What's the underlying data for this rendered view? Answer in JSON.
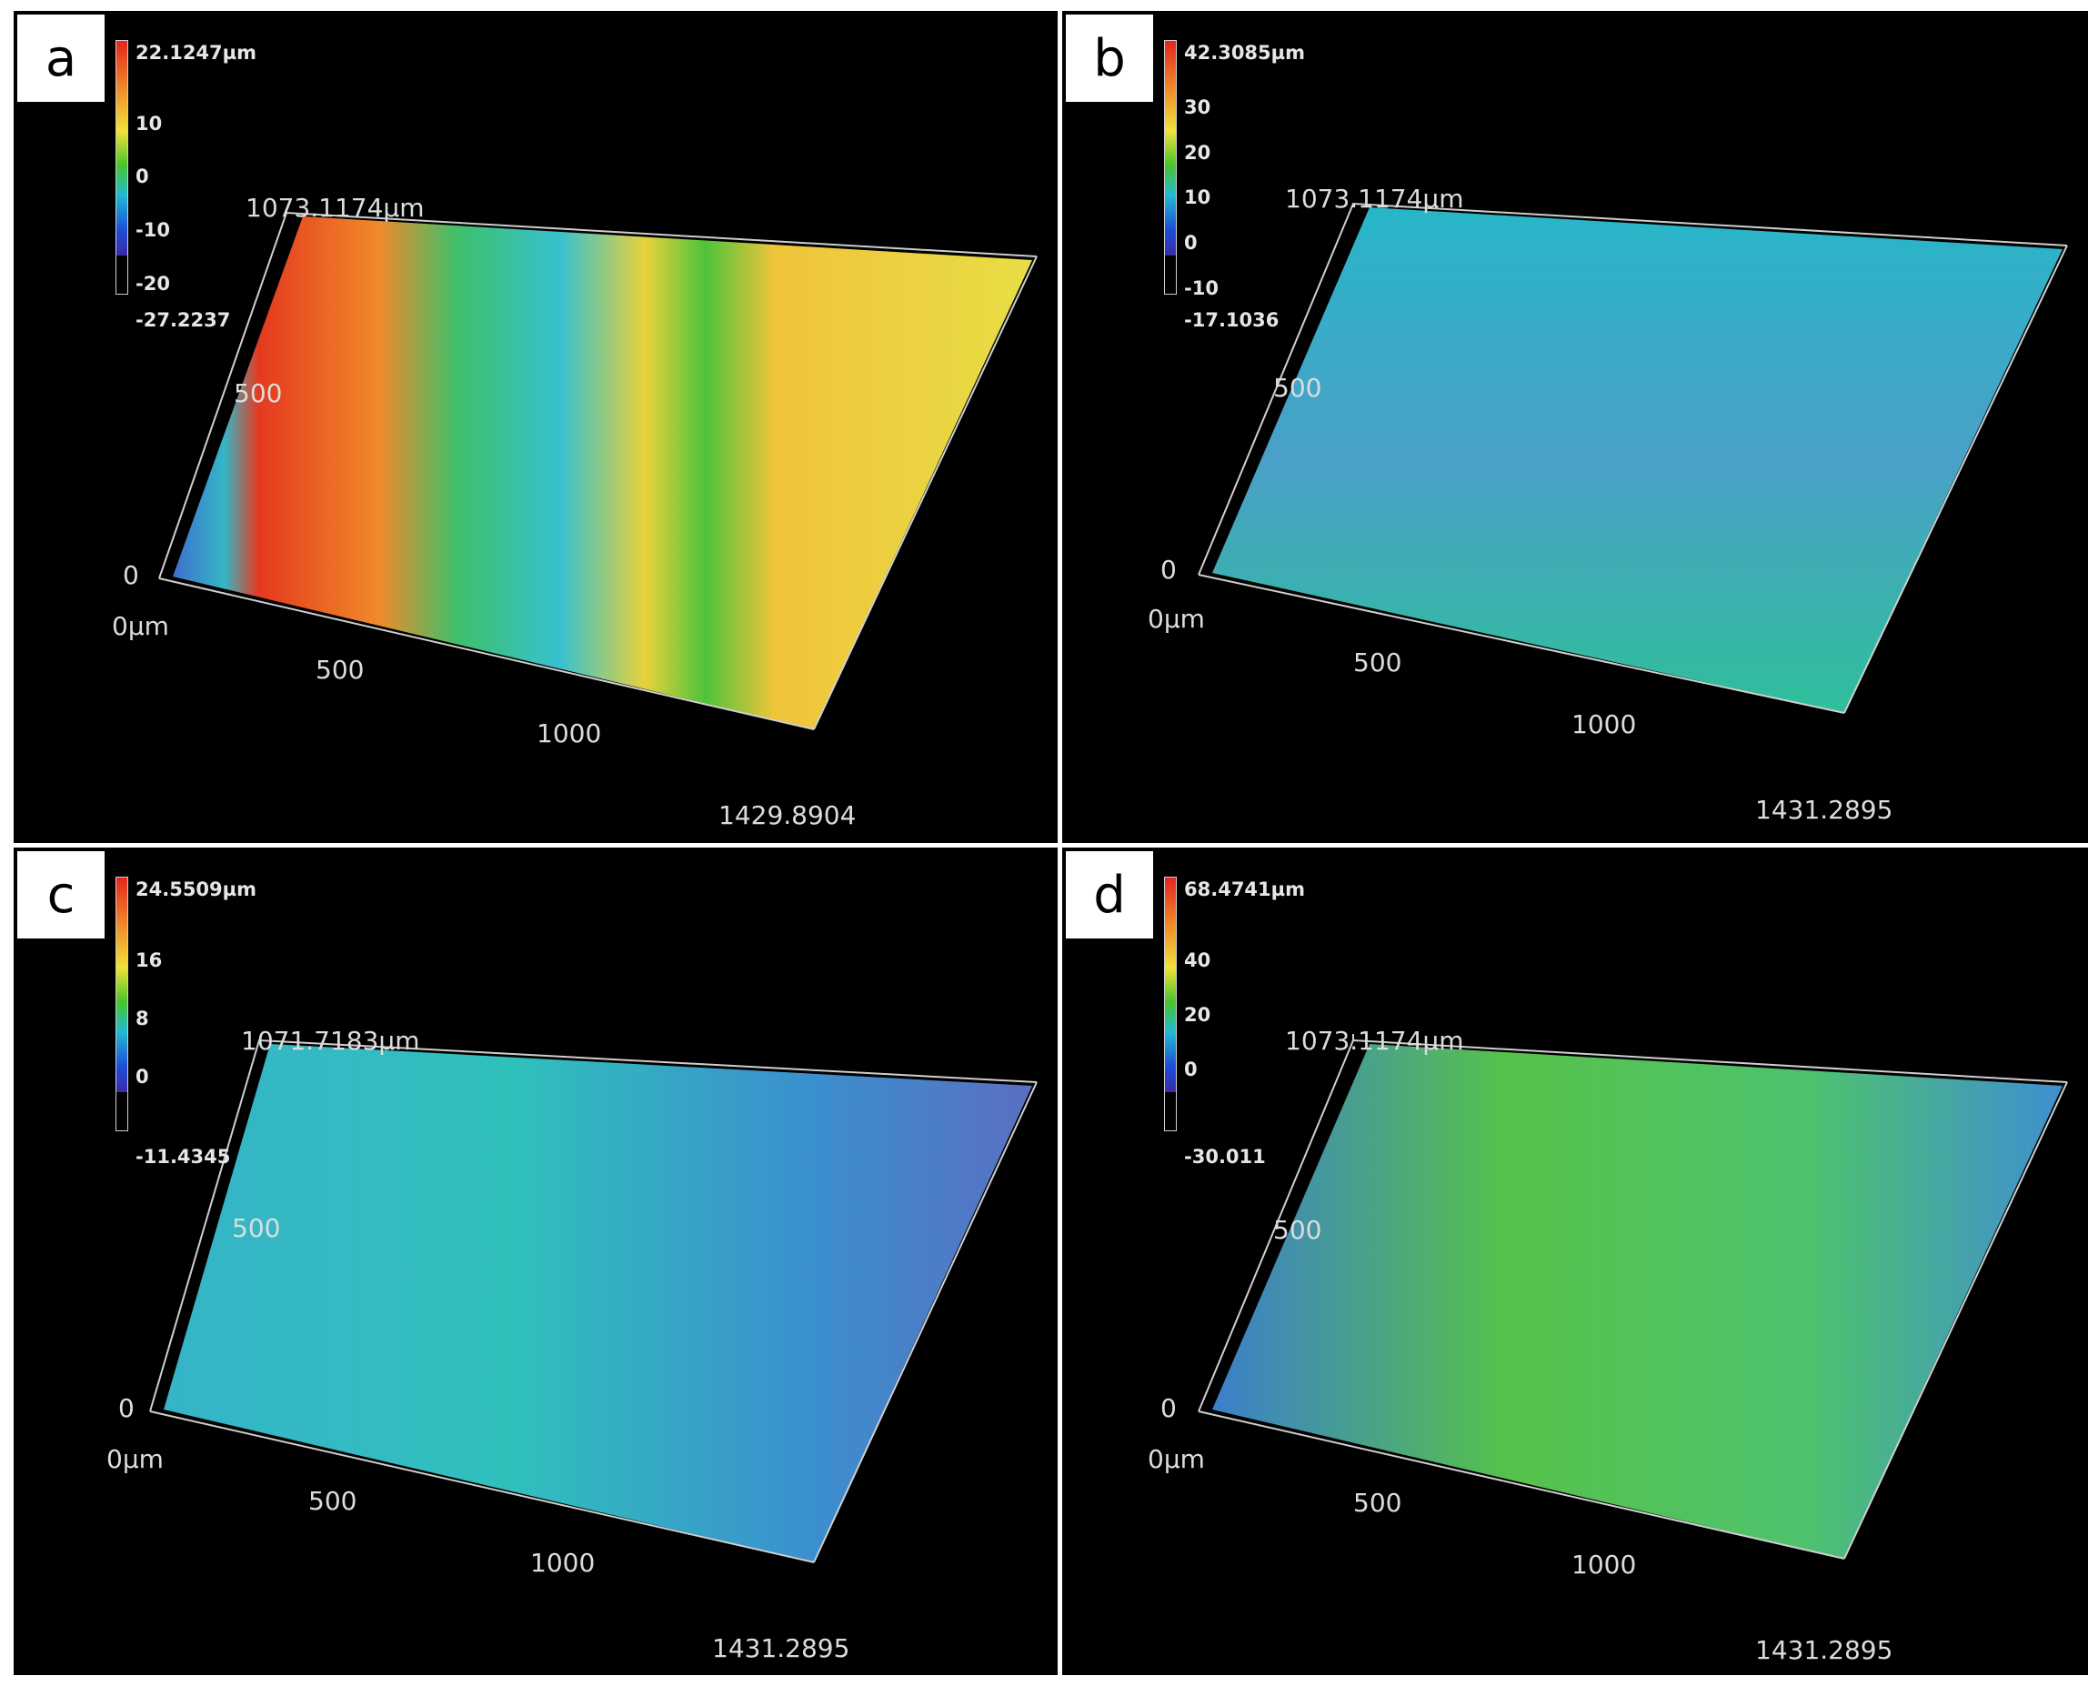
{
  "panels": [
    {
      "letter": "a",
      "colorbar": {
        "max": "22.1247µm",
        "ticks": [
          "10",
          "0",
          "-10",
          "-20"
        ],
        "min": "-27.2237"
      },
      "y_axis": {
        "max": "1073.1174µm",
        "mid": "500",
        "zero": "0"
      },
      "x_axis": {
        "origin": "0µm",
        "t1": "500",
        "t2": "1000",
        "max": "1429.8904"
      }
    },
    {
      "letter": "b",
      "colorbar": {
        "max": "42.3085µm",
        "ticks": [
          "30",
          "20",
          "10",
          "0",
          "-10"
        ],
        "min": "-17.1036"
      },
      "y_axis": {
        "max": "1073.1174µm",
        "mid": "500",
        "zero": "0"
      },
      "x_axis": {
        "origin": "0µm",
        "t1": "500",
        "t2": "1000",
        "max": "1431.2895"
      }
    },
    {
      "letter": "c",
      "colorbar": {
        "max": "24.5509µm",
        "ticks": [
          "16",
          "8",
          "0"
        ],
        "min": "-11.4345"
      },
      "y_axis": {
        "max": "1071.7183µm",
        "mid": "500",
        "zero": "0"
      },
      "x_axis": {
        "origin": "0µm",
        "t1": "500",
        "t2": "1000",
        "max": "1431.2895"
      }
    },
    {
      "letter": "d",
      "colorbar": {
        "max": "68.4741µm",
        "ticks": [
          "40",
          "20",
          "0"
        ],
        "min": "-30.011"
      },
      "y_axis": {
        "max": "1073.1174µm",
        "mid": "500",
        "zero": "0"
      },
      "x_axis": {
        "origin": "0µm",
        "t1": "500",
        "t2": "1000",
        "max": "1431.2895"
      }
    }
  ]
}
